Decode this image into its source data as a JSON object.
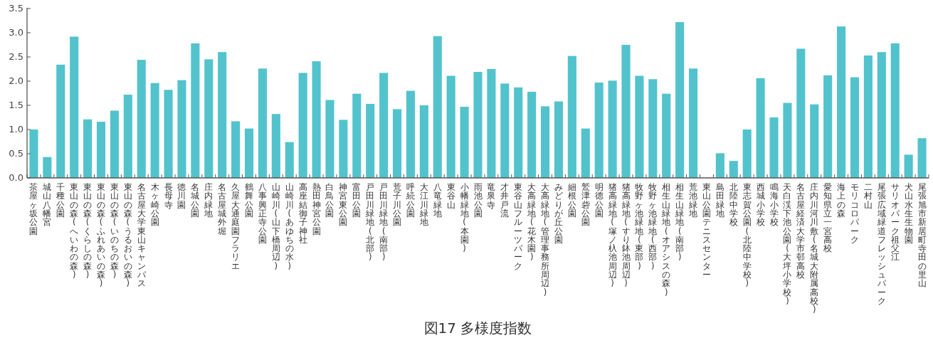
{
  "chart_data": {
    "type": "bar",
    "title": "図17 多様度指数",
    "color": "#52c3cc",
    "ylim": [
      0,
      3.5
    ],
    "yticks": [
      {
        "value": 0,
        "label": "0.0"
      },
      {
        "value": 0.5,
        "label": "0.5"
      },
      {
        "value": 1,
        "label": "1.0"
      },
      {
        "value": 1.5,
        "label": "1.5"
      },
      {
        "value": 2,
        "label": "2.0"
      },
      {
        "value": 2.5,
        "label": "2.5"
      },
      {
        "value": 3,
        "label": "3.0"
      },
      {
        "value": 3.5,
        "label": "3.5"
      }
    ],
    "grid": false,
    "categories": [
      "茶屋ヶ坂公園",
      "城山八幡宮",
      "千種公園",
      "東山の森(へいわの森)",
      "東山の森(くらしの森)",
      "東山の森(ふれあいの森)",
      "東山の森(いのちの森)",
      "東山の森(うるおいの森)",
      "名古屋大学東山キャンパス",
      "木ヶ崎公園",
      "長母寺",
      "徳川園",
      "名城公園",
      "庄内緑地",
      "名古屋城外堀",
      "久屋大通庭園フラリエ",
      "鶴舞公園",
      "八事興正寺公園",
      "山崎川(山下橋周辺)",
      "山崎川(あゆちの水)",
      "高座結御子神社",
      "熱田神宮公園",
      "白鳥公園",
      "神宮東公園",
      "富田公園",
      "戸田川緑地(北部)",
      "戸田川緑地(南部)",
      "荒子川公園",
      "呼続公園",
      "大江川緑地",
      "八竜緑地",
      "東谷山",
      "小幡緑地(本園)",
      "雨池公園",
      "竜泉寺",
      "才井戸流",
      "東谷山フルーツパーク",
      "大高緑地(花木園)",
      "大高緑地(管理事務所周辺)",
      "みどりが丘公園",
      "細根公園",
      "鷲津砦公園",
      "明徳公園",
      "猪高緑地(塚ノ杁池周辺)",
      "猪高緑地(すり鉢池周辺)",
      "牧野ヶ池緑地(東部)",
      "牧野ヶ池緑地(西部)",
      "相生山緑地(オアシスの森)",
      "相生山緑地(南部)",
      "荒池緑地",
      "東山公園テニスセンター",
      "島田緑地",
      "北陸中学校",
      "東志賀公園(北陸中学校)",
      "西城小学校",
      "鳴海小学校",
      "天白渓下池公園(大坪小学校)",
      "名古屋経済大学市邨高校",
      "庄内川河川敷(名城大附属高校)",
      "愛知県立一宮高校",
      "海上の森",
      "モリコロパーク",
      "二村山",
      "尾張広域緑道フレッシュパーク",
      "サリオパーク祖父江",
      "犬山水生生物園",
      "尾張旭市新居町寺田の里山"
    ],
    "values": [
      1.0,
      0.43,
      2.34,
      2.92,
      1.21,
      1.16,
      1.39,
      1.72,
      2.44,
      1.96,
      1.82,
      2.02,
      2.78,
      2.45,
      2.6,
      1.17,
      1.02,
      2.26,
      1.32,
      0.74,
      2.17,
      2.41,
      1.61,
      1.2,
      1.74,
      1.53,
      2.17,
      1.42,
      1.8,
      1.5,
      2.93,
      2.11,
      1.47,
      2.19,
      2.25,
      1.95,
      1.87,
      1.78,
      1.48,
      1.58,
      2.52,
      1.02,
      1.97,
      2.01,
      2.75,
      2.11,
      2.04,
      1.74,
      3.22,
      2.26,
      0,
      0.51,
      0.35,
      1.0,
      2.06,
      1.25,
      1.55,
      2.67,
      1.52,
      2.12,
      3.13,
      2.08,
      2.53,
      2.6,
      2.78,
      0.48,
      0.82
    ]
  }
}
